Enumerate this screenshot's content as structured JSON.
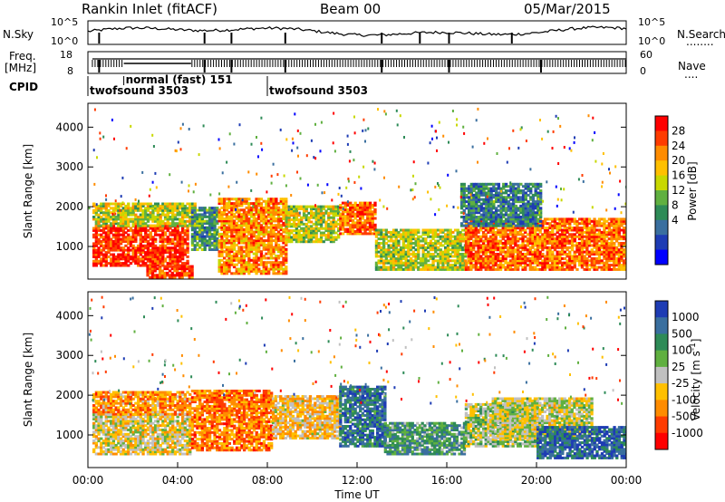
{
  "header": {
    "title": "Rankin Inlet (fitACF)",
    "beam": "Beam 00",
    "date": "05/Mar/2015"
  },
  "noise_panel": {
    "left_label": "N.Sky",
    "right_label": "N.Search",
    "right_dots": "........",
    "left_ticks": [
      "10^5",
      "10^0"
    ],
    "right_ticks": [
      "10^5",
      "10^0"
    ]
  },
  "freq_panel": {
    "left_label_1": "Freq.",
    "left_label_2": "[MHz]",
    "right_label": "Nave",
    "right_dots": "....",
    "left_ticks": [
      "18",
      "8"
    ],
    "right_ticks": [
      "60",
      "0"
    ]
  },
  "cpid": {
    "label": "CPID",
    "segments": [
      {
        "name": "twofsound 3503",
        "start_hour": 0.0
      },
      {
        "name": "normal (fast) 151",
        "start_hour": 1.6
      },
      {
        "name": "twofsound 3503",
        "start_hour": 8.0
      }
    ]
  },
  "time_axis": {
    "label": "Time UT",
    "ticks": [
      "00:00",
      "04:00",
      "08:00",
      "12:00",
      "16:00",
      "20:00",
      "00:00"
    ]
  },
  "chart_data": [
    {
      "type": "heatmap",
      "name": "power",
      "ylabel": "Slant Range [km]",
      "xlabel": "",
      "yticks": [
        1000,
        2000,
        3000,
        4000
      ],
      "ylim": [
        180,
        4600
      ],
      "xlim_hours": [
        0,
        24
      ],
      "colorbar": {
        "label": "Power [dB]",
        "ticks": [
          "28",
          "24",
          "20",
          "16",
          "12",
          "8",
          "4"
        ],
        "colors": [
          "#ff0000",
          "#ff3c00",
          "#ff8c00",
          "#ffc000",
          "#c8d800",
          "#60b040",
          "#2e8b57",
          "#3a6f9f",
          "#1e3cb4",
          "#0000ff"
        ]
      },
      "regions": [
        {
          "t0": 0.2,
          "t1": 4.4,
          "r0": 500,
          "r1": 1500,
          "level": 0.9
        },
        {
          "t0": 0.2,
          "t1": 4.8,
          "r0": 1500,
          "r1": 2100,
          "level": 0.55
        },
        {
          "t0": 2.6,
          "t1": 4.6,
          "r0": 200,
          "r1": 500,
          "level": 0.85
        },
        {
          "t0": 4.6,
          "t1": 5.8,
          "r0": 900,
          "r1": 2000,
          "level": 0.35
        },
        {
          "t0": 5.8,
          "t1": 8.8,
          "r0": 300,
          "r1": 2200,
          "level": 0.75
        },
        {
          "t0": 8.8,
          "t1": 11.2,
          "r0": 1100,
          "r1": 2000,
          "level": 0.55
        },
        {
          "t0": 11.2,
          "t1": 12.8,
          "r0": 1300,
          "r1": 2100,
          "level": 0.8
        },
        {
          "t0": 12.8,
          "t1": 16.8,
          "r0": 400,
          "r1": 1400,
          "level": 0.55
        },
        {
          "t0": 16.8,
          "t1": 24.0,
          "r0": 400,
          "r1": 1700,
          "level": 0.8
        },
        {
          "t0": 16.6,
          "t1": 20.2,
          "r0": 1500,
          "r1": 2600,
          "level": 0.3
        }
      ]
    },
    {
      "type": "heatmap",
      "name": "velocity",
      "ylabel": "Slant Range [km]",
      "xlabel": "Time UT",
      "yticks": [
        1000,
        2000,
        3000,
        4000
      ],
      "ylim": [
        180,
        4600
      ],
      "xlim_hours": [
        0,
        24
      ],
      "colorbar": {
        "label": "Velocity [m s^-1]",
        "ticks": [
          "1000",
          "500",
          "100",
          "25",
          "-25",
          "-100",
          "-500",
          "-1000"
        ],
        "colors": [
          "#1e3cb4",
          "#3a6f9f",
          "#2e8b57",
          "#60b040",
          "#c0c0c0",
          "#ffc000",
          "#ff8c00",
          "#ff3c00",
          "#ff0000"
        ]
      },
      "regions": [
        {
          "t0": 0.2,
          "t1": 4.6,
          "r0": 500,
          "r1": 1500,
          "level": 0.45
        },
        {
          "t0": 0.2,
          "t1": 4.6,
          "r0": 1500,
          "r1": 2100,
          "level": 0.3
        },
        {
          "t0": 4.6,
          "t1": 8.2,
          "r0": 600,
          "r1": 2100,
          "level": 0.25
        },
        {
          "t0": 8.2,
          "t1": 11.2,
          "r0": 900,
          "r1": 2000,
          "level": 0.4
        },
        {
          "t0": 11.2,
          "t1": 13.2,
          "r0": 700,
          "r1": 2200,
          "level": 0.82
        },
        {
          "t0": 13.2,
          "t1": 16.8,
          "r0": 500,
          "r1": 1300,
          "level": 0.7
        },
        {
          "t0": 16.8,
          "t1": 20.0,
          "r0": 700,
          "r1": 1800,
          "level": 0.55
        },
        {
          "t0": 18.0,
          "t1": 22.4,
          "r0": 900,
          "r1": 1900,
          "level": 0.5
        },
        {
          "t0": 20.0,
          "t1": 24.0,
          "r0": 400,
          "r1": 1200,
          "level": 0.85
        }
      ]
    }
  ]
}
